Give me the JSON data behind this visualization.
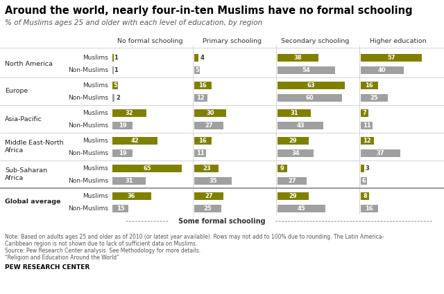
{
  "title": "Around the world, nearly four-in-ten Muslims have no formal schooling",
  "subtitle": "% of Muslims ages 25 and older with each level of education, by region",
  "columns": [
    "No formal schooling",
    "Primary schooling",
    "Secondary schooling",
    "Higher education"
  ],
  "regions": [
    {
      "name": "North America",
      "rows": [
        {
          "label": "Muslims",
          "values": [
            1,
            4,
            38,
            57
          ]
        },
        {
          "label": "Non-Muslims",
          "values": [
            1,
            5,
            54,
            40
          ]
        }
      ]
    },
    {
      "name": "Europe",
      "rows": [
        {
          "label": "Muslims",
          "values": [
            5,
            16,
            63,
            16
          ]
        },
        {
          "label": "Non-Muslims",
          "values": [
            2,
            12,
            60,
            25
          ]
        }
      ]
    },
    {
      "name": "Asia-Pacific",
      "rows": [
        {
          "label": "Muslims",
          "values": [
            32,
            30,
            31,
            7
          ]
        },
        {
          "label": "Non-Muslims",
          "values": [
            19,
            27,
            43,
            11
          ]
        }
      ]
    },
    {
      "name": "Middle East-North\nAfrica",
      "rows": [
        {
          "label": "Muslims",
          "values": [
            42,
            16,
            29,
            12
          ]
        },
        {
          "label": "Non-Muslims",
          "values": [
            19,
            11,
            34,
            37
          ]
        }
      ]
    },
    {
      "name": "Sub-Saharan\nAfrica",
      "rows": [
        {
          "label": "Muslims",
          "values": [
            65,
            23,
            9,
            3
          ]
        },
        {
          "label": "Non-Muslims",
          "values": [
            31,
            35,
            27,
            6
          ]
        }
      ]
    },
    {
      "name": "Global average",
      "rows": [
        {
          "label": "Muslims",
          "values": [
            36,
            27,
            29,
            8
          ]
        },
        {
          "label": "Non-Muslims",
          "values": [
            15,
            25,
            45,
            16
          ]
        }
      ]
    }
  ],
  "muslim_color": "#808000",
  "nonmuslim_color": "#a0a0a0",
  "col_max": 70,
  "note_line1": "Note: Based on adults ages 25 and older as of 2010 (or latest year available). Rows may not add to 100% due to rounding. The Latin America-",
  "note_line2": "Caribbean region is not shown due to lack of sufficient data on Muslims.",
  "note_line3": "Source: Pew Research Center analysis. See Methodology for more details.",
  "note_line4": "“Religion and Education Around the World”",
  "source_label": "PEW RESEARCH CENTER",
  "some_formal": "Some formal schooling",
  "background_color": "#ffffff",
  "title_color": "#000000",
  "sep_color": "#cccccc",
  "bold_sep_color": "#888888"
}
